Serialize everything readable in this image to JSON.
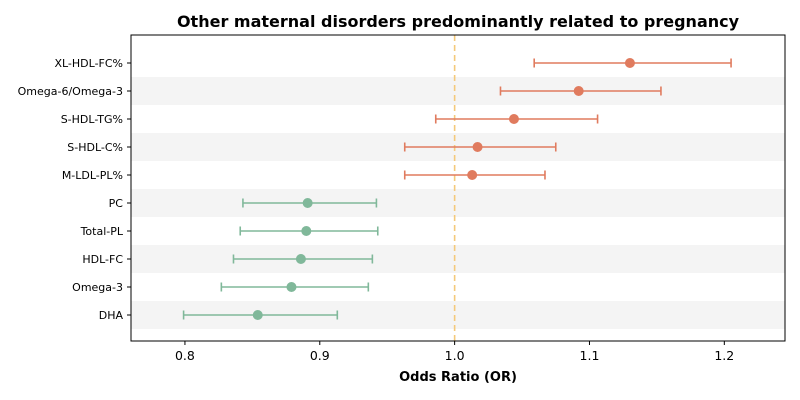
{
  "chart_data": {
    "type": "forest",
    "title": "Other maternal disorders predominantly related to pregnancy",
    "xlabel": "Odds Ratio (OR)",
    "xlim": [
      0.76,
      1.245
    ],
    "xticks": [
      0.8,
      0.9,
      1.0,
      1.1,
      1.2
    ],
    "xtick_labels": [
      "0.8",
      "0.9",
      "1.0",
      "1.1",
      "1.2"
    ],
    "reference_line": 1.0,
    "reference_color": "#f4c97a",
    "positive_color": "#e07b5e",
    "negative_color": "#80b89a",
    "band_color": "#f4f4f4",
    "categories": [
      "XL-HDL-FC%",
      "Omega-6/Omega-3",
      "S-HDL-TG%",
      "S-HDL-C%",
      "M-LDL-PL%",
      "PC",
      "Total-PL",
      "HDL-FC",
      "Omega-3",
      "DHA"
    ],
    "or": [
      1.13,
      1.092,
      1.044,
      1.017,
      1.013,
      0.891,
      0.89,
      0.886,
      0.879,
      0.854
    ],
    "ci_low": [
      1.059,
      1.034,
      0.986,
      0.963,
      0.963,
      0.843,
      0.841,
      0.836,
      0.827,
      0.799
    ],
    "ci_high": [
      1.205,
      1.153,
      1.106,
      1.075,
      1.067,
      0.942,
      0.943,
      0.939,
      0.936,
      0.913
    ],
    "grid": false
  }
}
